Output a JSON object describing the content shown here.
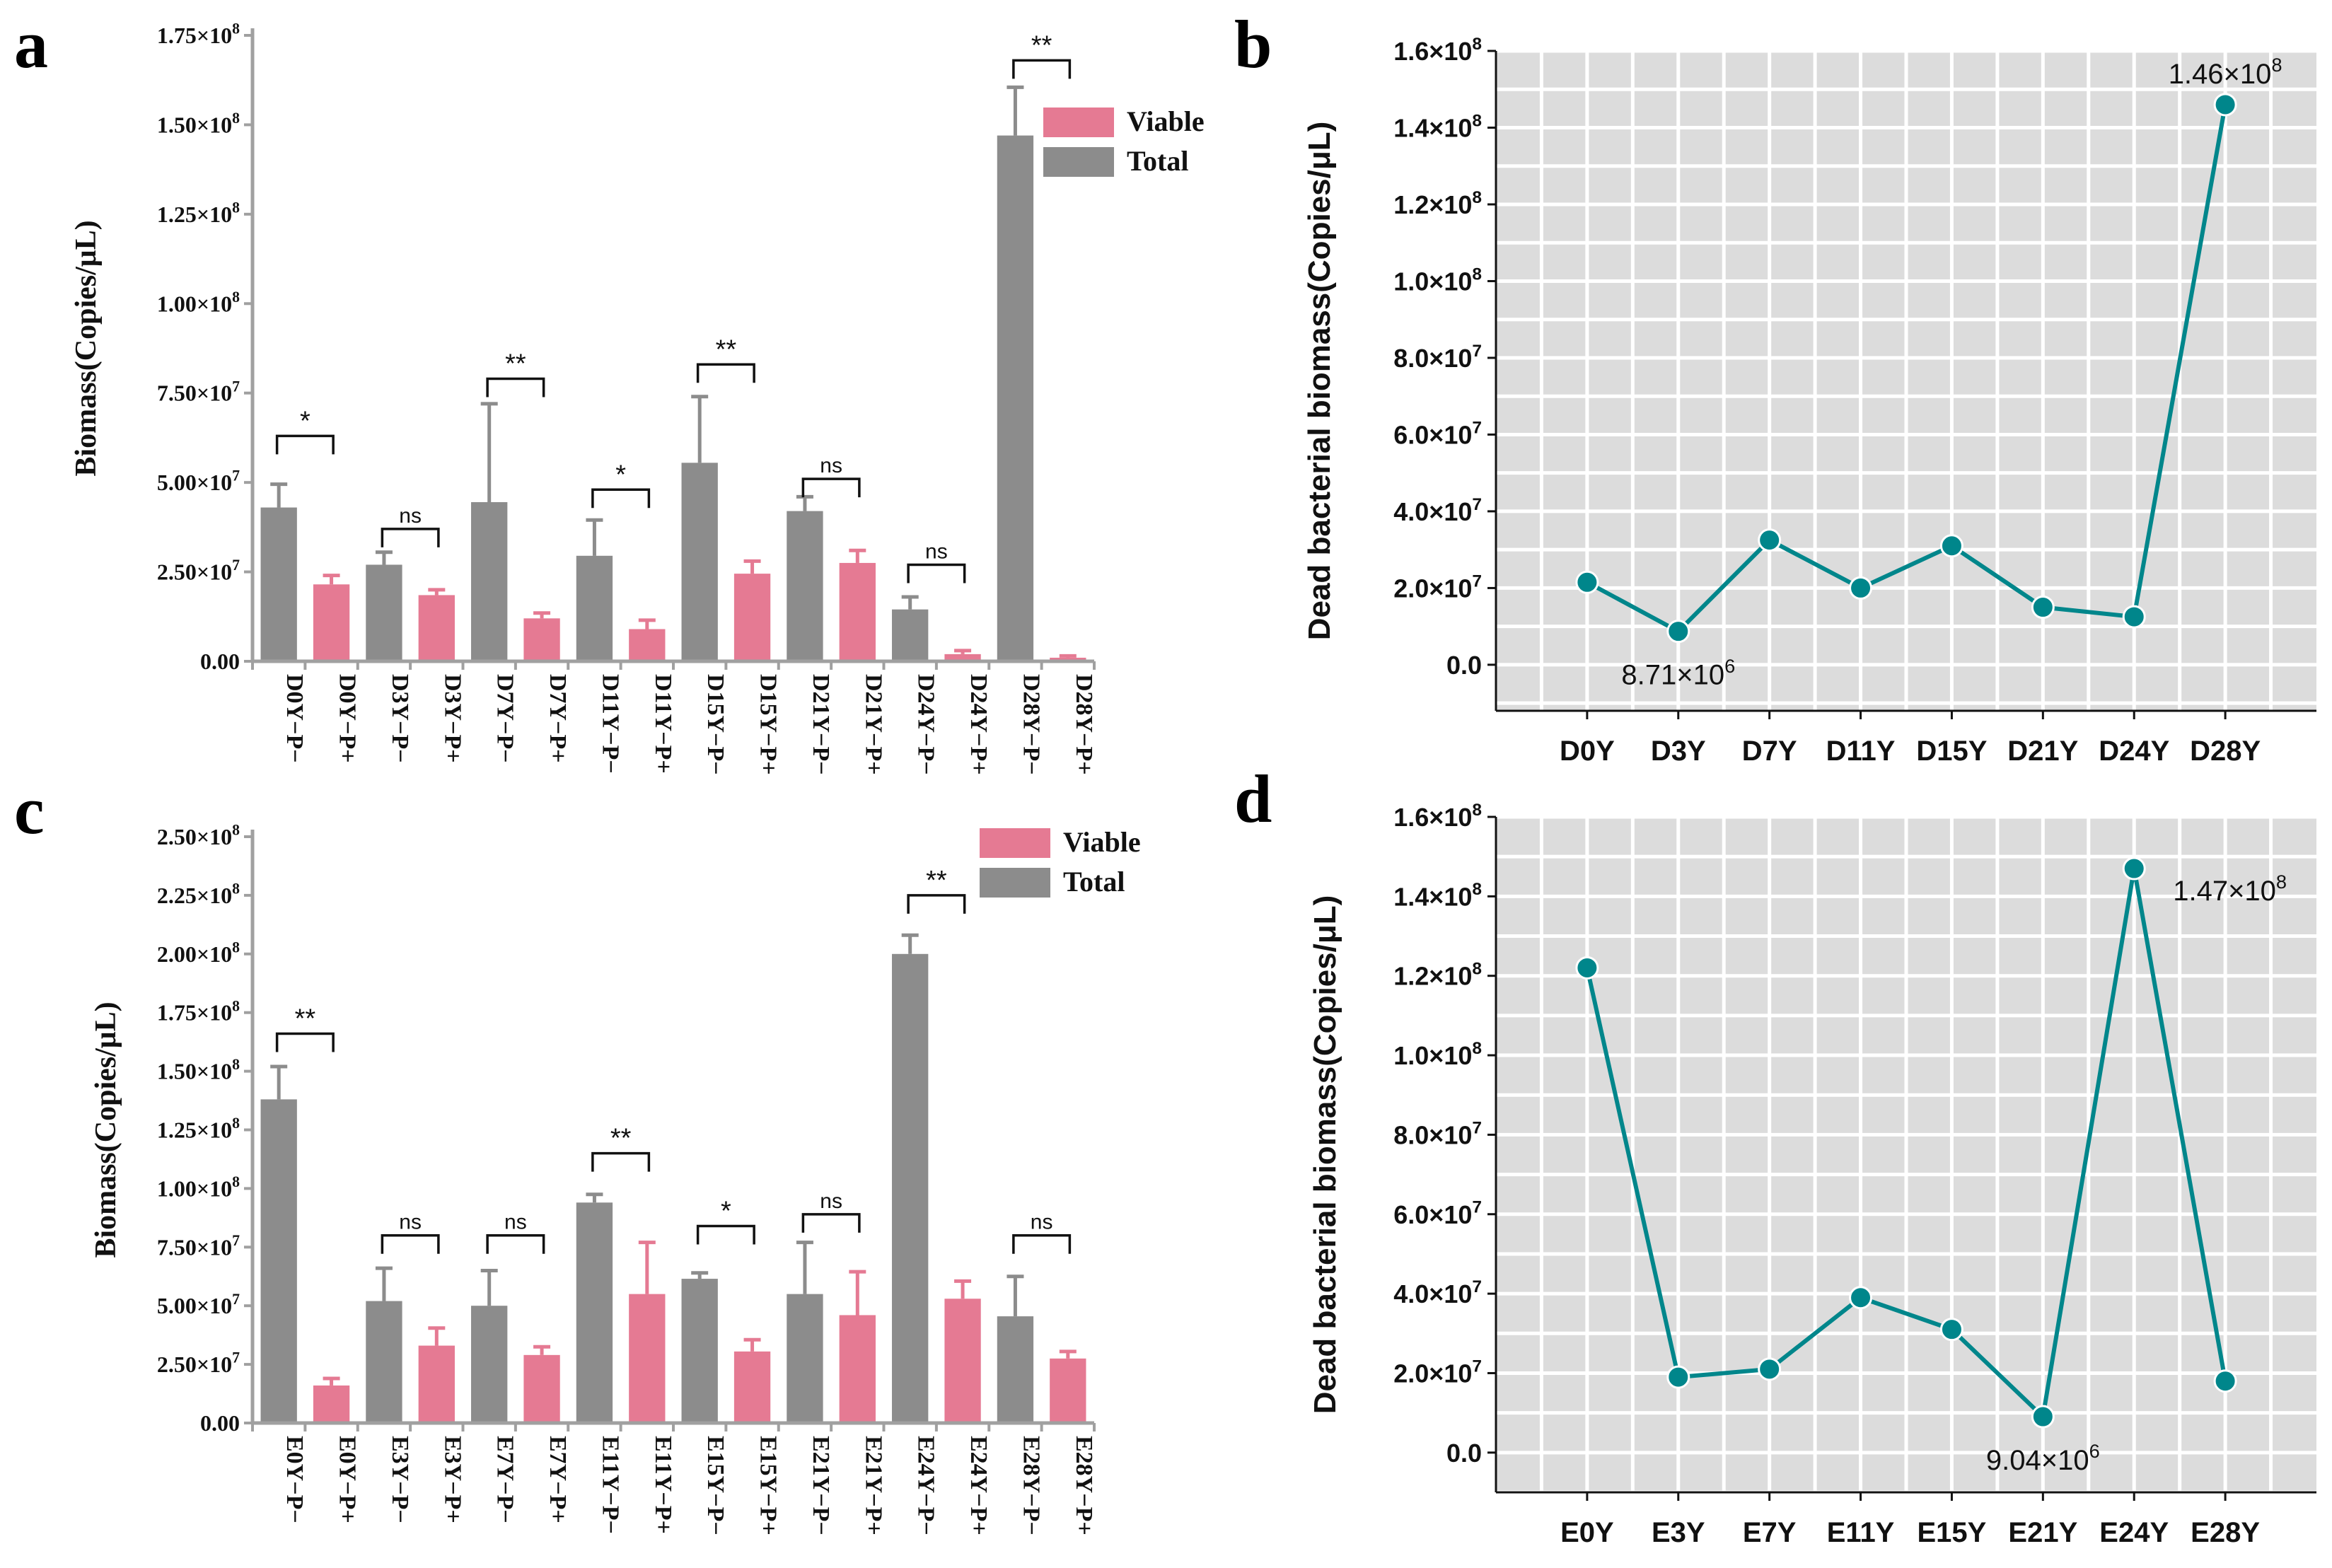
{
  "panels": {
    "a": "a",
    "b": "b",
    "c": "c",
    "d": "d"
  },
  "colors": {
    "viable": "#E57A93",
    "total": "#8C8C8C",
    "line": "#00868B",
    "plot_bg": "#DCDCDC",
    "grid": "#FFFFFF"
  },
  "chart_data": [
    {
      "type": "bar",
      "panel": "a",
      "ylabel": "Biomass(Copies/μL)",
      "ylim": [
        0,
        175000000
      ],
      "yticks": [
        {
          "v": 0,
          "label": "0.00"
        },
        {
          "v": 25000000,
          "label": "2.50×10",
          "exp": "7"
        },
        {
          "v": 50000000,
          "label": "5.00×10",
          "exp": "7"
        },
        {
          "v": 75000000,
          "label": "7.50×10",
          "exp": "7"
        },
        {
          "v": 100000000,
          "label": "1.00×10",
          "exp": "8"
        },
        {
          "v": 125000000,
          "label": "1.25×10",
          "exp": "8"
        },
        {
          "v": 150000000,
          "label": "1.50×10",
          "exp": "8"
        },
        {
          "v": 175000000,
          "label": "1.75×10",
          "exp": "8"
        }
      ],
      "legend": [
        {
          "name": "Viable",
          "key": "viable"
        },
        {
          "name": "Total",
          "key": "total"
        }
      ],
      "legend_position": "top-right",
      "bars": [
        {
          "label": "D0Y−P−",
          "value": 43000000,
          "err": 6500000,
          "series": "total"
        },
        {
          "label": "D0Y−P+",
          "value": 21500000,
          "err": 2500000,
          "series": "viable"
        },
        {
          "label": "D3Y−P−",
          "value": 27000000,
          "err": 3500000,
          "series": "total"
        },
        {
          "label": "D3Y−P+",
          "value": 18500000,
          "err": 1500000,
          "series": "viable"
        },
        {
          "label": "D7Y−P−",
          "value": 44500000,
          "err": 27500000,
          "series": "total"
        },
        {
          "label": "D7Y−P+",
          "value": 12000000,
          "err": 1500000,
          "series": "viable"
        },
        {
          "label": "D11Y−P−",
          "value": 29500000,
          "err": 10000000,
          "series": "total"
        },
        {
          "label": "D11Y−P+",
          "value": 9000000,
          "err": 2500000,
          "series": "viable"
        },
        {
          "label": "D15Y−P−",
          "value": 55500000,
          "err": 18500000,
          "series": "total"
        },
        {
          "label": "D15Y−P+",
          "value": 24500000,
          "err": 3500000,
          "series": "viable"
        },
        {
          "label": "D21Y−P−",
          "value": 42000000,
          "err": 4000000,
          "series": "total"
        },
        {
          "label": "D21Y−P+",
          "value": 27500000,
          "err": 3500000,
          "series": "viable"
        },
        {
          "label": "D24Y−P−",
          "value": 14500000,
          "err": 3500000,
          "series": "total"
        },
        {
          "label": "D24Y−P+",
          "value": 2000000,
          "err": 1000000,
          "series": "viable"
        },
        {
          "label": "D28Y−P−",
          "value": 147000000,
          "err": 13500000,
          "series": "total"
        },
        {
          "label": "D28Y−P+",
          "value": 1000000,
          "err": 500000,
          "series": "viable"
        }
      ],
      "significance": [
        {
          "pair": 0,
          "label": "*",
          "level": 63000000
        },
        {
          "pair": 1,
          "label": "ns",
          "level": 37000000
        },
        {
          "pair": 2,
          "label": "**",
          "level": 79000000
        },
        {
          "pair": 3,
          "label": "*",
          "level": 48000000
        },
        {
          "pair": 4,
          "label": "**",
          "level": 83000000
        },
        {
          "pair": 5,
          "label": "ns",
          "level": 51000000
        },
        {
          "pair": 6,
          "label": "ns",
          "level": 27000000
        },
        {
          "pair": 7,
          "label": "**",
          "level": 168000000
        }
      ]
    },
    {
      "type": "line",
      "panel": "b",
      "ylabel": "Dead bacterial biomass(Copies/μL)",
      "ylim": [
        -12000000,
        160000000
      ],
      "yticks": [
        {
          "v": 0,
          "label": "0.0"
        },
        {
          "v": 20000000,
          "label": "2.0×10",
          "exp": "7"
        },
        {
          "v": 40000000,
          "label": "4.0×10",
          "exp": "7"
        },
        {
          "v": 60000000,
          "label": "6.0×10",
          "exp": "7"
        },
        {
          "v": 80000000,
          "label": "8.0×10",
          "exp": "7"
        },
        {
          "v": 100000000,
          "label": "1.0×10",
          "exp": "8"
        },
        {
          "v": 120000000,
          "label": "1.2×10",
          "exp": "8"
        },
        {
          "v": 140000000,
          "label": "1.4×10",
          "exp": "8"
        },
        {
          "v": 160000000,
          "label": "1.6×10",
          "exp": "8"
        }
      ],
      "categories": [
        "D0Y",
        "D3Y",
        "D7Y",
        "D11Y",
        "D15Y",
        "D21Y",
        "D24Y",
        "D28Y"
      ],
      "values": [
        21500000,
        8710000,
        32500000,
        20000000,
        31000000,
        15000000,
        12500000,
        146000000
      ],
      "annotations": [
        {
          "index": 1,
          "text": "8.71×10",
          "exp": "6",
          "pos": "below"
        },
        {
          "index": 7,
          "text": "1.46×10",
          "exp": "8",
          "pos": "above"
        }
      ]
    },
    {
      "type": "bar",
      "panel": "c",
      "ylabel": "Biomass(Copies/μL)",
      "ylim": [
        0,
        250000000
      ],
      "yticks": [
        {
          "v": 0,
          "label": "0.00"
        },
        {
          "v": 25000000,
          "label": "2.50×10",
          "exp": "7"
        },
        {
          "v": 50000000,
          "label": "5.00×10",
          "exp": "7"
        },
        {
          "v": 75000000,
          "label": "7.50×10",
          "exp": "7"
        },
        {
          "v": 100000000,
          "label": "1.00×10",
          "exp": "8"
        },
        {
          "v": 125000000,
          "label": "1.25×10",
          "exp": "8"
        },
        {
          "v": 150000000,
          "label": "1.50×10",
          "exp": "8"
        },
        {
          "v": 175000000,
          "label": "1.75×10",
          "exp": "8"
        },
        {
          "v": 200000000,
          "label": "2.00×10",
          "exp": "8"
        },
        {
          "v": 225000000,
          "label": "2.25×10",
          "exp": "8"
        },
        {
          "v": 250000000,
          "label": "2.50×10",
          "exp": "8"
        }
      ],
      "legend": [
        {
          "name": "Viable",
          "key": "viable"
        },
        {
          "name": "Total",
          "key": "total"
        }
      ],
      "legend_position": "top-right",
      "bars": [
        {
          "label": "E0Y−P−",
          "value": 138000000,
          "err": 14000000,
          "series": "total"
        },
        {
          "label": "E0Y−P+",
          "value": 16000000,
          "err": 3000000,
          "series": "viable"
        },
        {
          "label": "E3Y−P−",
          "value": 52000000,
          "err": 14000000,
          "series": "total"
        },
        {
          "label": "E3Y−P+",
          "value": 33000000,
          "err": 7500000,
          "series": "viable"
        },
        {
          "label": "E7Y−P−",
          "value": 50000000,
          "err": 15000000,
          "series": "total"
        },
        {
          "label": "E7Y−P+",
          "value": 29000000,
          "err": 3500000,
          "series": "viable"
        },
        {
          "label": "E11Y−P−",
          "value": 94000000,
          "err": 3500000,
          "series": "total"
        },
        {
          "label": "E11Y−P+",
          "value": 55000000,
          "err": 22000000,
          "series": "viable"
        },
        {
          "label": "E15Y−P−",
          "value": 61500000,
          "err": 2500000,
          "series": "total"
        },
        {
          "label": "E15Y−P+",
          "value": 30500000,
          "err": 5000000,
          "series": "viable"
        },
        {
          "label": "E21Y−P−",
          "value": 55000000,
          "err": 22000000,
          "series": "total"
        },
        {
          "label": "E21Y−P+",
          "value": 46000000,
          "err": 18500000,
          "series": "viable"
        },
        {
          "label": "E24Y−P−",
          "value": 200000000,
          "err": 8000000,
          "series": "total"
        },
        {
          "label": "E24Y−P+",
          "value": 53000000,
          "err": 7500000,
          "series": "viable"
        },
        {
          "label": "E28Y−P−",
          "value": 45500000,
          "err": 17000000,
          "series": "total"
        },
        {
          "label": "E28Y−P+",
          "value": 27500000,
          "err": 3000000,
          "series": "viable"
        }
      ],
      "significance": [
        {
          "pair": 0,
          "label": "**",
          "level": 166000000
        },
        {
          "pair": 1,
          "label": "ns",
          "level": 80000000
        },
        {
          "pair": 2,
          "label": "ns",
          "level": 80000000
        },
        {
          "pair": 3,
          "label": "**",
          "level": 115000000
        },
        {
          "pair": 4,
          "label": "*",
          "level": 84000000
        },
        {
          "pair": 5,
          "label": "ns",
          "level": 89000000
        },
        {
          "pair": 6,
          "label": "**",
          "level": 225000000
        },
        {
          "pair": 7,
          "label": "ns",
          "level": 80000000
        }
      ]
    },
    {
      "type": "line",
      "panel": "d",
      "ylabel": "Dead bacterial biomass(Copies/μL)",
      "ylim": [
        -10000000,
        160000000
      ],
      "yticks": [
        {
          "v": 0,
          "label": "0.0"
        },
        {
          "v": 20000000,
          "label": "2.0×10",
          "exp": "7"
        },
        {
          "v": 40000000,
          "label": "4.0×10",
          "exp": "7"
        },
        {
          "v": 60000000,
          "label": "6.0×10",
          "exp": "7"
        },
        {
          "v": 80000000,
          "label": "8.0×10",
          "exp": "7"
        },
        {
          "v": 100000000,
          "label": "1.0×10",
          "exp": "8"
        },
        {
          "v": 120000000,
          "label": "1.2×10",
          "exp": "8"
        },
        {
          "v": 140000000,
          "label": "1.4×10",
          "exp": "8"
        },
        {
          "v": 160000000,
          "label": "1.6×10",
          "exp": "8"
        }
      ],
      "categories": [
        "E0Y",
        "E3Y",
        "E7Y",
        "E11Y",
        "E15Y",
        "E21Y",
        "E24Y",
        "E28Y"
      ],
      "values": [
        122000000,
        19000000,
        21000000,
        39000000,
        31000000,
        9040000,
        147000000,
        18000000
      ],
      "annotations": [
        {
          "index": 5,
          "text": "9.04×10",
          "exp": "6",
          "pos": "below"
        },
        {
          "index": 6,
          "text": "1.47×10",
          "exp": "8",
          "pos": "right"
        }
      ]
    }
  ]
}
